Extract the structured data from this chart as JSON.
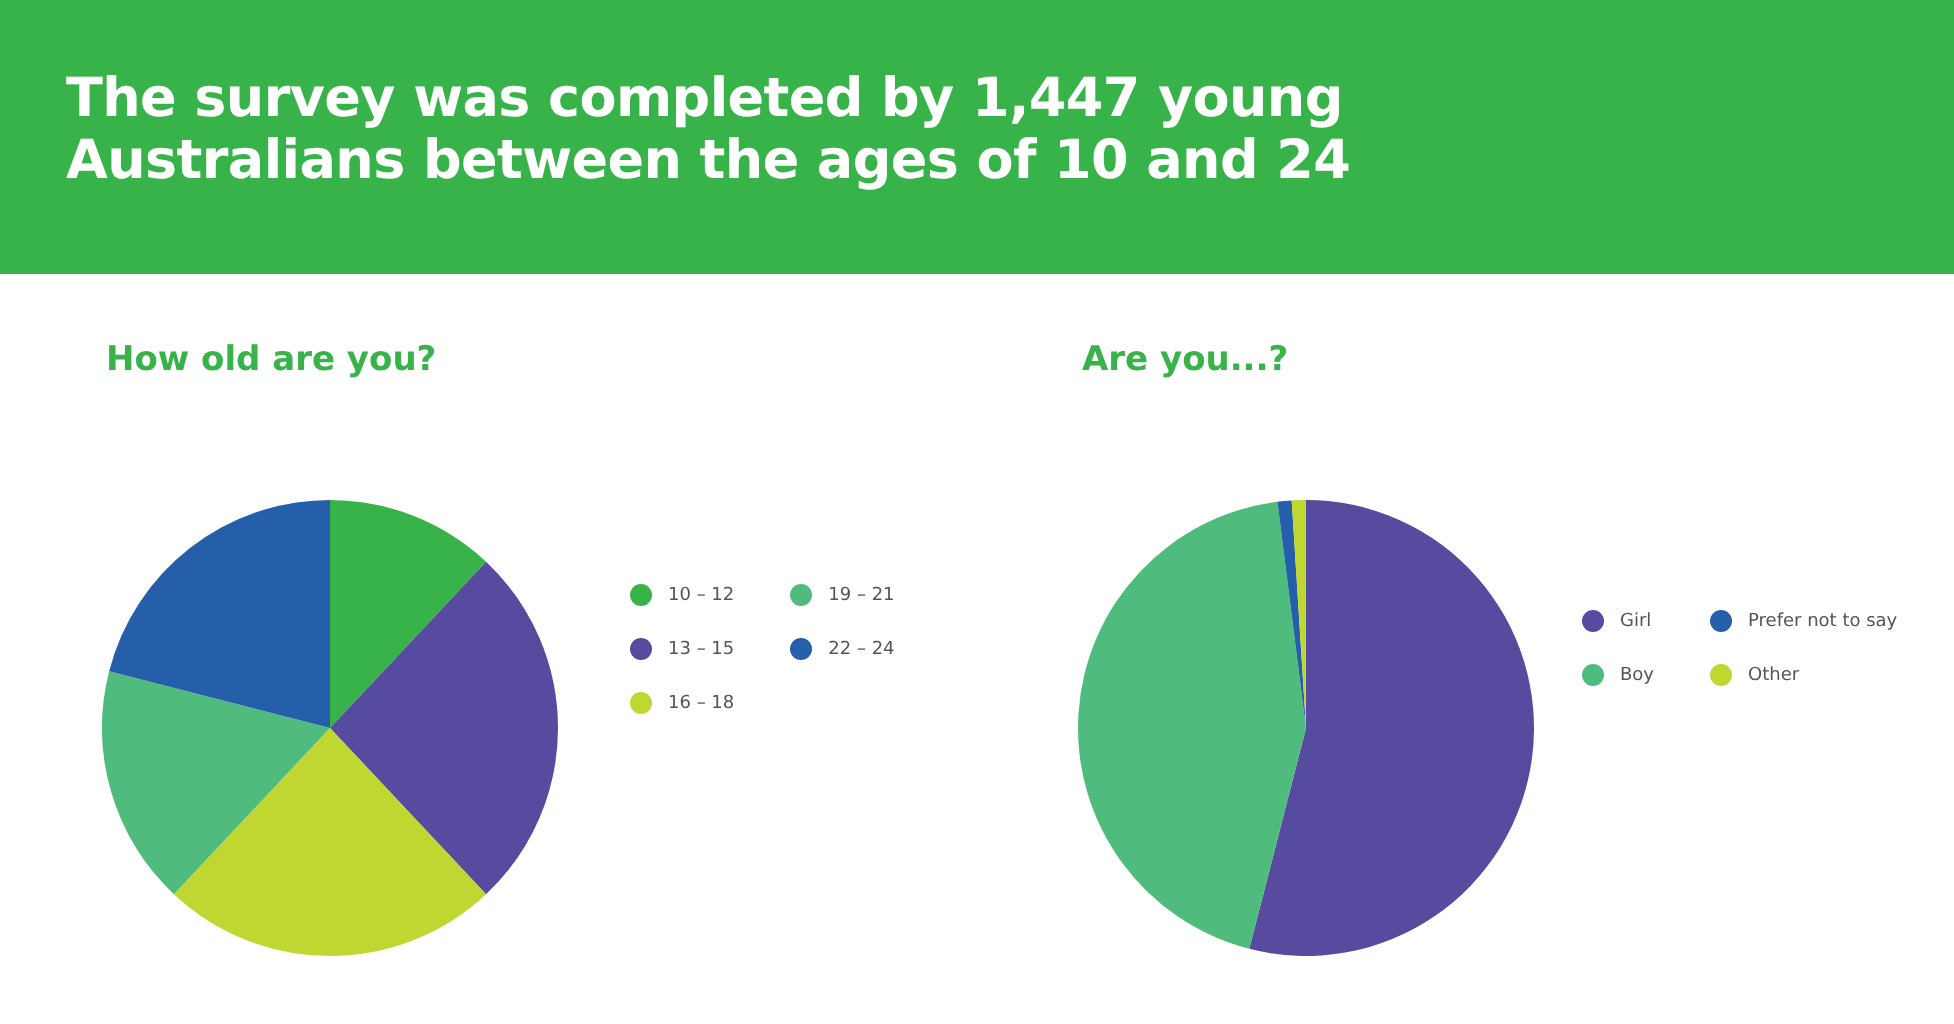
{
  "chart_data": [
    {
      "type": "pie",
      "title": "How old are you?",
      "annotations": [
        "The survey was completed by 1,447 young Australians between the ages of 10 and 24"
      ],
      "categories": [
        "10 – 12",
        "13 – 15",
        "16 – 18",
        "19 – 21",
        "22 – 24"
      ],
      "values": [
        12,
        26,
        24,
        17,
        21
      ],
      "colors": [
        "#37b34a",
        "#574b9f",
        "#bfd730",
        "#4fbc7e",
        "#255ea9"
      ],
      "legend": "right"
    },
    {
      "type": "pie",
      "title": "Are you...?",
      "categories": [
        "Girl",
        "Boy",
        "Prefer not to say",
        "Other"
      ],
      "values": [
        54,
        44,
        1,
        1
      ],
      "colors": [
        "#574b9f",
        "#4fbc7e",
        "#255ea9",
        "#bfd730"
      ],
      "legend": "right"
    }
  ]
}
